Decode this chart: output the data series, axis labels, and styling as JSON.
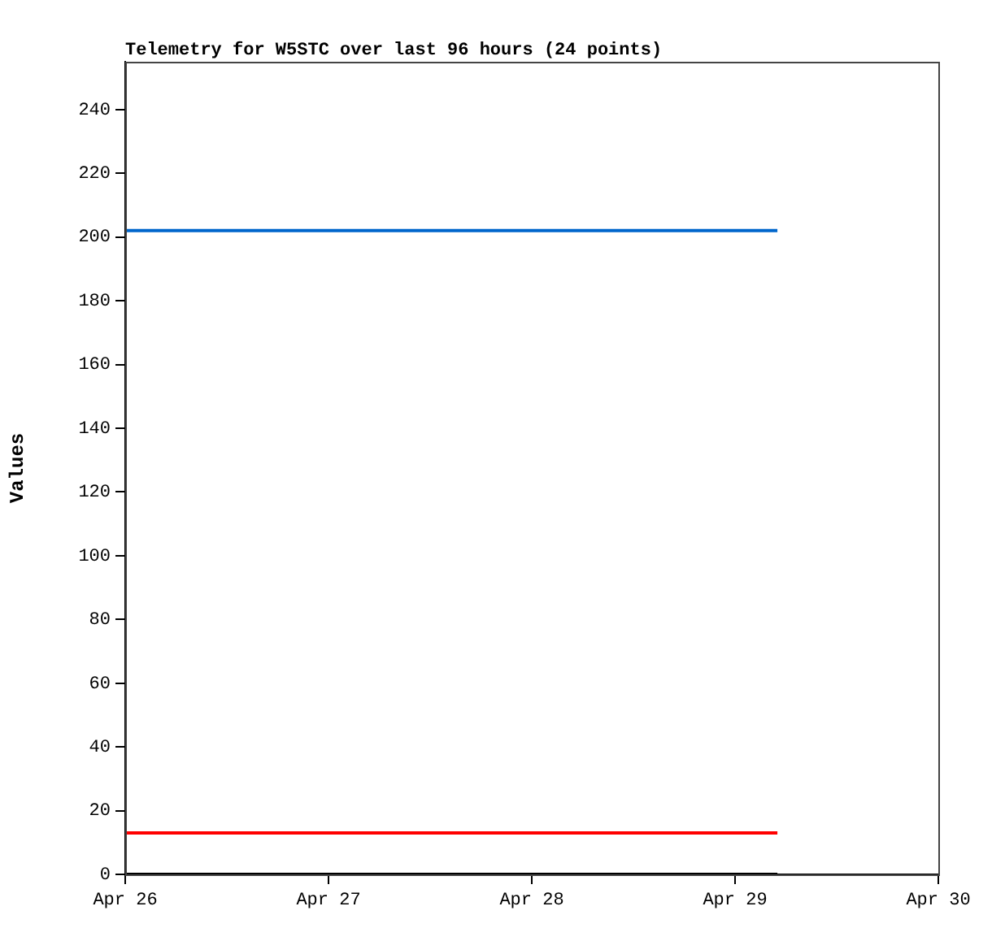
{
  "chart_data": {
    "type": "line",
    "title": "Telemetry for W5STC over last 96 hours (24 points)",
    "ylabel": "Values",
    "xlim": [
      "--04-26",
      "--04-30"
    ],
    "xticks": [
      {
        "value": "--04-26",
        "label": "Apr 26"
      },
      {
        "value": "--04-27",
        "label": "Apr 27"
      },
      {
        "value": "--04-28",
        "label": "Apr 28"
      },
      {
        "value": "--04-29",
        "label": "Apr 29"
      },
      {
        "value": "--04-30",
        "label": "Apr 30"
      }
    ],
    "ylim": [
      0,
      255
    ],
    "yticks": [
      0,
      20,
      40,
      60,
      80,
      100,
      120,
      140,
      160,
      180,
      200,
      220,
      240
    ],
    "grid": false,
    "legend": false,
    "marker": "none",
    "line_style": "solid",
    "series": [
      {
        "color": "#0066cc",
        "x": [
          "--04-26T00:00",
          "--04-29T05:00"
        ],
        "values": [
          202,
          202
        ]
      },
      {
        "color": "#ff0000",
        "x": [
          "--04-26T00:00",
          "--04-29T05:00"
        ],
        "values": [
          13,
          13
        ]
      },
      {
        "color": "#000000",
        "x": [
          "--04-26T00:00",
          "--04-29T05:00"
        ],
        "values": [
          0,
          0
        ]
      }
    ]
  }
}
